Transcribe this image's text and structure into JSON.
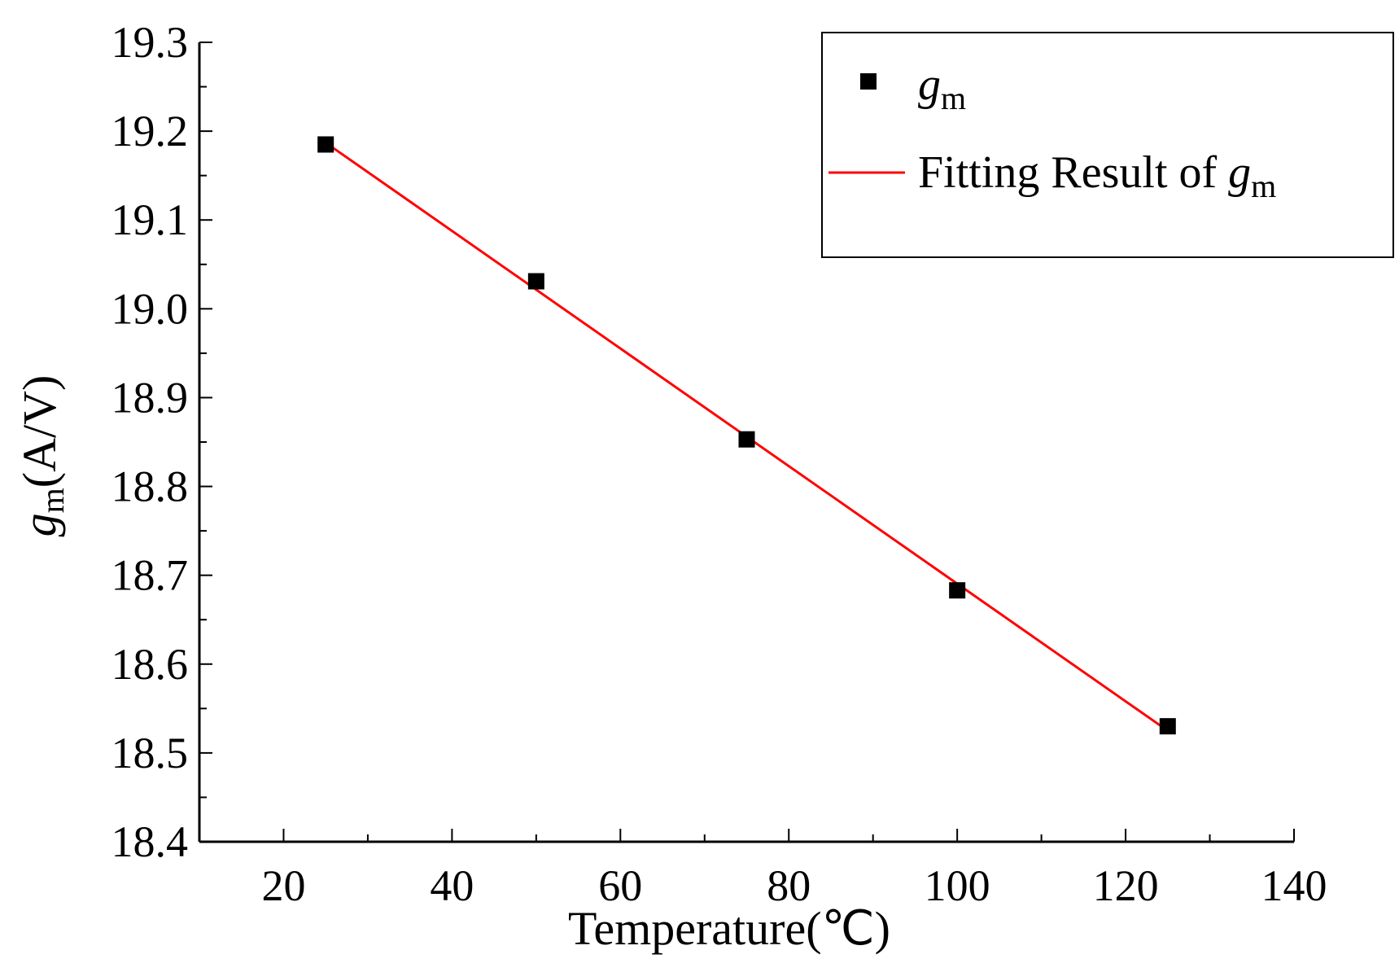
{
  "chart_data": {
    "type": "scatter",
    "title": "",
    "xlabel": "Temperature(℃)",
    "ylabel": {
      "symbol": "g",
      "subscript": "m",
      "unit": "(A/V)"
    },
    "xlim": [
      10,
      140
    ],
    "ylim": [
      18.4,
      19.3
    ],
    "x_ticks": [
      20,
      40,
      60,
      80,
      100,
      120,
      140
    ],
    "y_ticks": [
      18.4,
      18.5,
      18.6,
      18.7,
      18.8,
      18.9,
      19.0,
      19.1,
      19.2,
      19.3
    ],
    "y_tick_labels": [
      "18.4",
      "18.5",
      "18.6",
      "18.7",
      "18.8",
      "18.9",
      "19.0",
      "19.1",
      "19.2",
      "19.3"
    ],
    "grid": false,
    "series": [
      {
        "name": "g_m",
        "kind": "scatter",
        "color": "#000000",
        "x": [
          25,
          50,
          75,
          100,
          125
        ],
        "y": [
          19.185,
          19.031,
          18.853,
          18.683,
          18.53
        ]
      },
      {
        "name": "Fitting Result of g_m",
        "kind": "line",
        "color": "#ff0000",
        "x": [
          25,
          125
        ],
        "y": [
          19.187,
          18.525
        ]
      }
    ],
    "legend": {
      "position": "top-right",
      "entries": [
        {
          "text": "",
          "symbol": "g",
          "subscript": "m",
          "marker": "square"
        },
        {
          "text": "Fitting Result of ",
          "symbol": "g",
          "subscript": "m",
          "marker": "line"
        }
      ]
    }
  }
}
